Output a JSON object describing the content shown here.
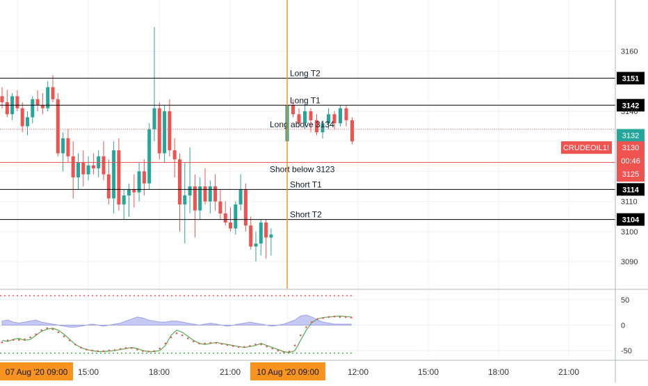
{
  "chart_data": {
    "type": "candlestick",
    "symbol": "CRUDEOIL1!",
    "last_price": "3130",
    "countdown": "00:46",
    "high_marker": "3132",
    "low_marker": "3125",
    "colors": {
      "up": "#26a69a",
      "down": "#ef5350",
      "vertical_marker": "#f7931e",
      "symbol_badge": "#ef5350",
      "levels": "#000000",
      "short_line": "#ef5350",
      "rsi": "#4caf50",
      "signal": "#ef5350",
      "oscillator_fill": "#c5c8f0"
    },
    "price_axis": {
      "ylim": [
        3081,
        3177
      ],
      "ticks": [
        3090,
        3100,
        3110,
        3120,
        3130,
        3140,
        3160
      ]
    },
    "levels": [
      {
        "label": "Long T2",
        "value": 3151,
        "badge": "3151"
      },
      {
        "label": "Long T1",
        "value": 3142,
        "badge": "3142"
      },
      {
        "label": "Long above 3134",
        "value": 3134,
        "badge": ""
      },
      {
        "label": "Short below 3123",
        "value": 3123,
        "badge": ""
      },
      {
        "label": "Short T1",
        "value": 3114,
        "badge": "3114"
      },
      {
        "label": "Short T2",
        "value": 3104,
        "badge": "3104"
      }
    ],
    "time_axis": {
      "labels": [
        "15:00",
        "18:00",
        "21:00",
        "12:00",
        "15:00",
        "18:00",
        "21:00"
      ],
      "session_labels": [
        "07 Aug '20  09:00",
        "10 Aug '20  09:00"
      ]
    },
    "candles": [
      [
        3145,
        3148,
        3141,
        3143
      ],
      [
        3143,
        3147,
        3138,
        3139
      ],
      [
        3139,
        3146,
        3137,
        3145
      ],
      [
        3145,
        3147,
        3140,
        3141
      ],
      [
        3141,
        3143,
        3133,
        3135
      ],
      [
        3135,
        3140,
        3132,
        3138
      ],
      [
        3138,
        3145,
        3136,
        3144
      ],
      [
        3144,
        3147,
        3140,
        3142
      ],
      [
        3142,
        3146,
        3139,
        3141
      ],
      [
        3141,
        3150,
        3140,
        3148
      ],
      [
        3148,
        3152,
        3143,
        3144
      ],
      [
        3144,
        3146,
        3125,
        3126
      ],
      [
        3126,
        3133,
        3120,
        3131
      ],
      [
        3131,
        3134,
        3123,
        3125
      ],
      [
        3125,
        3130,
        3111,
        3118
      ],
      [
        3118,
        3126,
        3114,
        3123
      ],
      [
        3123,
        3127,
        3115,
        3119
      ],
      [
        3119,
        3125,
        3117,
        3122
      ],
      [
        3122,
        3126,
        3119,
        3121
      ],
      [
        3121,
        3127,
        3118,
        3125
      ],
      [
        3125,
        3130,
        3117,
        3119
      ],
      [
        3119,
        3124,
        3109,
        3111
      ],
      [
        3111,
        3130,
        3106,
        3127
      ],
      [
        3127,
        3131,
        3107,
        3109
      ],
      [
        3109,
        3114,
        3104,
        3112
      ],
      [
        3112,
        3116,
        3105,
        3114
      ],
      [
        3114,
        3119,
        3108,
        3113
      ],
      [
        3113,
        3123,
        3110,
        3120
      ],
      [
        3120,
        3124,
        3112,
        3116
      ],
      [
        3116,
        3136,
        3114,
        3134
      ],
      [
        3134,
        3168,
        3130,
        3141
      ],
      [
        3141,
        3143,
        3124,
        3126
      ],
      [
        3126,
        3142,
        3123,
        3140
      ],
      [
        3140,
        3144,
        3125,
        3127
      ],
      [
        3127,
        3131,
        3118,
        3124
      ],
      [
        3124,
        3126,
        3100,
        3109
      ],
      [
        3109,
        3123,
        3096,
        3112
      ],
      [
        3112,
        3128,
        3106,
        3115
      ],
      [
        3115,
        3119,
        3098,
        3107
      ],
      [
        3107,
        3118,
        3104,
        3115
      ],
      [
        3115,
        3121,
        3109,
        3110
      ],
      [
        3110,
        3117,
        3106,
        3115
      ],
      [
        3115,
        3119,
        3107,
        3110
      ],
      [
        3110,
        3114,
        3104,
        3106
      ],
      [
        3106,
        3110,
        3102,
        3103
      ],
      [
        3103,
        3108,
        3100,
        3101
      ],
      [
        3101,
        3110,
        3099,
        3109
      ],
      [
        3109,
        3119,
        3107,
        3114
      ],
      [
        3114,
        3116,
        3100,
        3102
      ],
      [
        3102,
        3105,
        3094,
        3095
      ],
      [
        3095,
        3100,
        3090,
        3096
      ],
      [
        3096,
        3104,
        3092,
        3103
      ],
      [
        3103,
        3104,
        3091,
        3098
      ],
      [
        3098,
        3101,
        3092,
        3099
      ]
    ],
    "candles_day2": [
      [
        3130,
        3143,
        3129,
        3142
      ],
      [
        3142,
        3144,
        3138,
        3139
      ],
      [
        3139,
        3141,
        3135,
        3136
      ],
      [
        3136,
        3142,
        3134,
        3140
      ],
      [
        3140,
        3141,
        3133,
        3137
      ],
      [
        3137,
        3139,
        3132,
        3133
      ],
      [
        3133,
        3137,
        3131,
        3136
      ],
      [
        3136,
        3141,
        3134,
        3139
      ],
      [
        3139,
        3140,
        3134,
        3136
      ],
      [
        3136,
        3142,
        3135,
        3141
      ],
      [
        3141,
        3142,
        3135,
        3137
      ],
      [
        3137,
        3138,
        3129,
        3130
      ]
    ],
    "oscillator": {
      "ticks": [
        50,
        0,
        -50
      ],
      "ylim": [
        -65,
        65
      ],
      "upper_band": 58,
      "lower_band": -55,
      "rsi": [
        -30,
        -32,
        -28,
        -26,
        -30,
        -28,
        -20,
        -12,
        -8,
        -6,
        -10,
        -18,
        -28,
        -38,
        -44,
        -48,
        -50,
        -52,
        -52,
        -51,
        -50,
        -48,
        -46,
        -44,
        -46,
        -50,
        -52,
        -52,
        -50,
        -40,
        -20,
        -10,
        -14,
        -22,
        -30,
        -36,
        -38,
        -36,
        -34,
        -36,
        -38,
        -40,
        -42,
        -44,
        -42,
        -40,
        -36,
        -40,
        -44,
        -48,
        -52,
        -54,
        -50,
        -30,
        -10,
        5,
        12,
        15,
        16,
        17,
        18,
        17,
        16
      ],
      "signal": [
        -34,
        -30,
        -29,
        -29,
        -28,
        -24,
        -18,
        -10,
        -6,
        -8,
        -14,
        -22,
        -30,
        -38,
        -44,
        -48,
        -50,
        -51,
        -51,
        -50,
        -49,
        -47,
        -45,
        -45,
        -48,
        -51,
        -52,
        -51,
        -46,
        -36,
        -24,
        -16,
        -20,
        -26,
        -32,
        -36,
        -36,
        -35,
        -35,
        -37,
        -39,
        -41,
        -43,
        -43,
        -41,
        -38,
        -38,
        -42,
        -46,
        -50,
        -53,
        -52,
        -40,
        -20,
        -4,
        6,
        12,
        14,
        16,
        17,
        16,
        16,
        15
      ],
      "fill": [
        8,
        10,
        6,
        4,
        6,
        8,
        10,
        6,
        4,
        2,
        0,
        -2,
        -4,
        -4,
        -2,
        0,
        2,
        0,
        -2,
        0,
        2,
        4,
        8,
        12,
        16,
        14,
        10,
        8,
        6,
        6,
        8,
        8,
        6,
        4,
        2,
        0,
        2,
        4,
        2,
        0,
        -2,
        0,
        2,
        4,
        6,
        4,
        2,
        0,
        -2,
        0,
        2,
        6,
        10,
        18,
        20,
        16,
        10,
        6,
        4,
        2,
        2,
        2,
        2
      ]
    }
  }
}
